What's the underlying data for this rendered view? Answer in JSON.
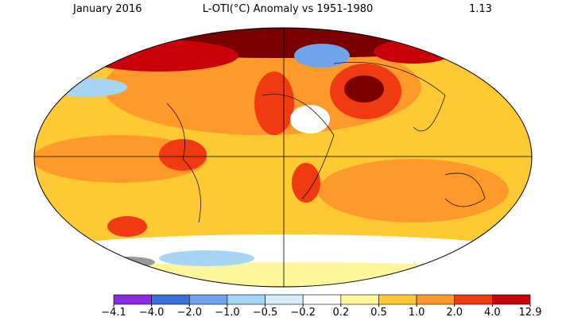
{
  "header": {
    "date": "January 2016",
    "title": "L-OTI(°C) Anomaly vs 1951-1980",
    "global_mean": 1.13
  },
  "colorbar": {
    "ticks": [
      {
        "value": -4.1,
        "label": "−4.1"
      },
      {
        "value": -4.0,
        "label": "−4.0"
      },
      {
        "value": -2.0,
        "label": "−2.0"
      },
      {
        "value": -1.0,
        "label": "−1.0"
      },
      {
        "value": -0.5,
        "label": "−0.5"
      },
      {
        "value": -0.2,
        "label": "−0.2"
      },
      0.2,
      0.5,
      {
        "value": 1.0,
        "label": "1.0"
      },
      {
        "value": 2.0,
        "label": "2.0"
      },
      {
        "value": 4.0,
        "label": "4.0"
      },
      12.9
    ],
    "colors": [
      "#8a2be2",
      "#3a6fd8",
      "#6fa3ec",
      "#a6d4f5",
      "#d6eefb",
      "#ffffff",
      "#fff59a",
      "#ffc934",
      "#ff9a2a",
      "#f03a12",
      "#c8000a",
      "#7a0000"
    ]
  }
}
